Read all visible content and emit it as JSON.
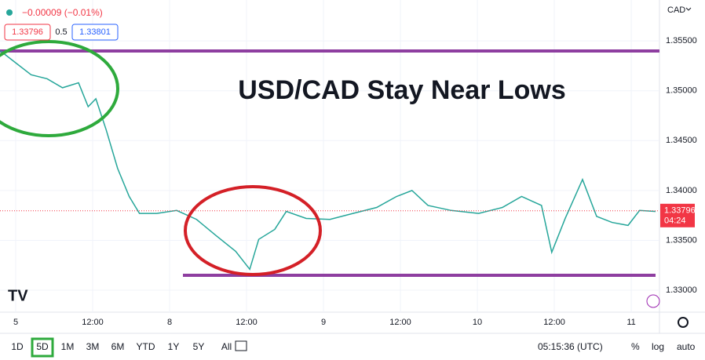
{
  "chart_data": {
    "type": "line",
    "title": "USD/CAD Stay Near Lows",
    "currency": "CAD",
    "change": "−0.00009 (−0.01%)",
    "bid": 1.33796,
    "spread": 0.5,
    "ask": 1.33801,
    "last_price": 1.33796,
    "countdown": "04:24",
    "series": [
      {
        "color": "#26a69a",
        "x": [
          -2.4,
          0,
          2.4,
          4.9,
          7.3,
          9.8,
          11.3,
          12.5,
          14.1,
          15.9,
          17.7,
          19.3,
          22,
          25.1,
          28.2,
          31.2,
          34.3,
          36.5,
          37.9,
          40.4,
          42.2,
          45.3,
          49,
          52.6,
          56.3,
          59.4,
          61.8,
          64.3,
          67.9,
          72.2,
          75.9,
          78.9,
          82,
          83.6,
          85.7,
          88.4,
          90.6,
          93,
          95.5,
          97.3,
          99.8
        ],
        "values": [
          1.354,
          1.3528,
          1.3516,
          1.3512,
          1.3503,
          1.3508,
          1.3484,
          1.3492,
          1.3461,
          1.3422,
          1.3394,
          1.3377,
          1.3377,
          1.338,
          1.3371,
          1.3355,
          1.3339,
          1.3321,
          1.3351,
          1.3361,
          1.3379,
          1.3372,
          1.3371,
          1.3377,
          1.3383,
          1.3394,
          1.34,
          1.3385,
          1.338,
          1.3377,
          1.3383,
          1.3394,
          1.3385,
          1.3338,
          1.3372,
          1.3411,
          1.3374,
          1.3368,
          1.3365,
          1.338,
          1.3379
        ]
      }
    ],
    "xlim": [
      -2.45,
      100.4
    ],
    "xticks": [
      {
        "value": 0,
        "label": "5"
      },
      {
        "value": 12,
        "label": "12:00"
      },
      {
        "value": 24,
        "label": "8"
      },
      {
        "value": 36,
        "label": "12:00"
      },
      {
        "value": 48,
        "label": "9"
      },
      {
        "value": 60,
        "label": "12:00"
      },
      {
        "value": 72,
        "label": "10"
      },
      {
        "value": 84,
        "label": "12:00"
      },
      {
        "value": 96,
        "label": "11"
      }
    ],
    "ylim": [
      1.3278,
      1.3591
    ],
    "yticks": [
      {
        "value": 1.33,
        "label": "1.33000"
      },
      {
        "value": 1.335,
        "label": "1.33500"
      },
      {
        "value": 1.34,
        "label": "1.34000"
      },
      {
        "value": 1.345,
        "label": "1.34500"
      },
      {
        "value": 1.35,
        "label": "1.35000"
      },
      {
        "value": 1.355,
        "label": "1.35500"
      }
    ],
    "grid": true,
    "toolbar": {
      "ranges": [
        "1D",
        "5D",
        "1M",
        "3M",
        "6M",
        "YTD",
        "1Y",
        "5Y",
        "All"
      ],
      "active": 1,
      "clock": "05:15:36 (UTC)",
      "options": [
        "%",
        "log",
        "auto"
      ]
    }
  }
}
